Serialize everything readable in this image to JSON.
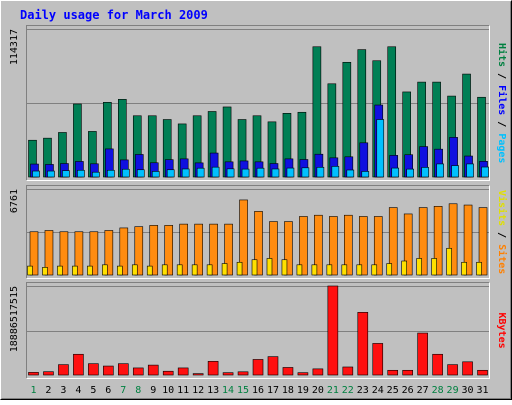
{
  "chart_data": {
    "type": "bar",
    "title": "Daily usage for March 2009",
    "days": [
      "1",
      "2",
      "3",
      "4",
      "5",
      "6",
      "7",
      "8",
      "9",
      "10",
      "11",
      "12",
      "13",
      "14",
      "15",
      "16",
      "17",
      "18",
      "19",
      "20",
      "21",
      "22",
      "23",
      "24",
      "25",
      "26",
      "27",
      "28",
      "29",
      "30",
      "31"
    ],
    "weekend_days": [
      1,
      7,
      8,
      14,
      15,
      21,
      22,
      28,
      29
    ],
    "panels": [
      {
        "name": "hits-files-pages",
        "axis_max_label": "114317",
        "ylim": [
          0,
          114317
        ],
        "legend": [
          {
            "label": "Pages",
            "color": "#00c0ff"
          },
          {
            "label": "Files",
            "color": "#0000ff"
          },
          {
            "label": "Hits",
            "color": "#008040"
          }
        ],
        "series": [
          {
            "name": "Hits",
            "color": "#008040",
            "values": [
              28400,
              30000,
              34400,
              56400,
              35200,
              57700,
              60000,
              47300,
              47300,
              44400,
              41000,
              47300,
              50600,
              54100,
              44400,
              47300,
              42600,
              49200,
              50000,
              100600,
              72000,
              88600,
              98400,
              89800,
              100600,
              65700,
              73300,
              73300,
              62500,
              79500,
              61600
            ]
          },
          {
            "name": "Files",
            "color": "#0000ff",
            "values": [
              10000,
              9700,
              10400,
              12000,
              10200,
              21700,
              13200,
              17400,
              11000,
              13400,
              14000,
              10900,
              18500,
              11700,
              12400,
              11700,
              10400,
              14000,
              13500,
              17600,
              14800,
              15600,
              26400,
              55600,
              16700,
              17200,
              23500,
              21500,
              30600,
              16200,
              12100
            ]
          },
          {
            "name": "Pages",
            "color": "#00c0ff",
            "values": [
              4600,
              4600,
              4900,
              5200,
              3700,
              5200,
              6000,
              5600,
              4300,
              5600,
              6200,
              6800,
              7600,
              6300,
              6100,
              6800,
              6200,
              6900,
              7100,
              7500,
              8200,
              5400,
              4300,
              44400,
              6900,
              6100,
              7400,
              10100,
              8800,
              10100,
              7700
            ]
          }
        ]
      },
      {
        "name": "visits-sites",
        "axis_max_label": "6761",
        "ylim": [
          0,
          6761
        ],
        "legend": [
          {
            "label": "Sites",
            "color": "#ff8000"
          },
          {
            "label": "Visits",
            "color": "#ffff00"
          }
        ],
        "series": [
          {
            "name": "Visits",
            "color": "#ff8000",
            "values": [
              3400,
              3500,
              3400,
              3400,
              3400,
              3500,
              3700,
              3800,
              3900,
              3900,
              4000,
              4000,
              4000,
              4000,
              5900,
              5000,
              4200,
              4200,
              4600,
              4700,
              4600,
              4700,
              4600,
              4600,
              5300,
              4800,
              5300,
              5400,
              5600,
              5500,
              5300
            ]
          },
          {
            "name": "Sites",
            "color": "#ffff00",
            "values": [
              700,
              600,
              700,
              700,
              700,
              800,
              700,
              800,
              700,
              800,
              800,
              800,
              800,
              900,
              1000,
              1200,
              1300,
              1200,
              800,
              800,
              800,
              800,
              800,
              800,
              900,
              1100,
              1300,
              1300,
              2100,
              1000,
              1000
            ]
          }
        ]
      },
      {
        "name": "kbytes",
        "axis_max_label": "18886517515",
        "ylim": [
          0,
          18886517515
        ],
        "legend": [
          {
            "label": "KBytes",
            "color": "#ff0000"
          }
        ],
        "series": [
          {
            "name": "KBytes",
            "color": "#ff0000",
            "values": [
              560000000,
              700000000,
              2200000000,
              4400000000,
              2400000000,
              1900000000,
              2400000000,
              1500000000,
              2100000000,
              800000000,
              1500000000,
              300000000,
              2900000000,
              500000000,
              680000000,
              3300000000,
              3900000000,
              1600000000,
              500000000,
              1300000000,
              18886517515,
              1700000000,
              13300000000,
              6700000000,
              1000000000,
              1000000000,
              8900000000,
              4400000000,
              2200000000,
              2800000000,
              1000000000
            ]
          }
        ]
      }
    ]
  }
}
